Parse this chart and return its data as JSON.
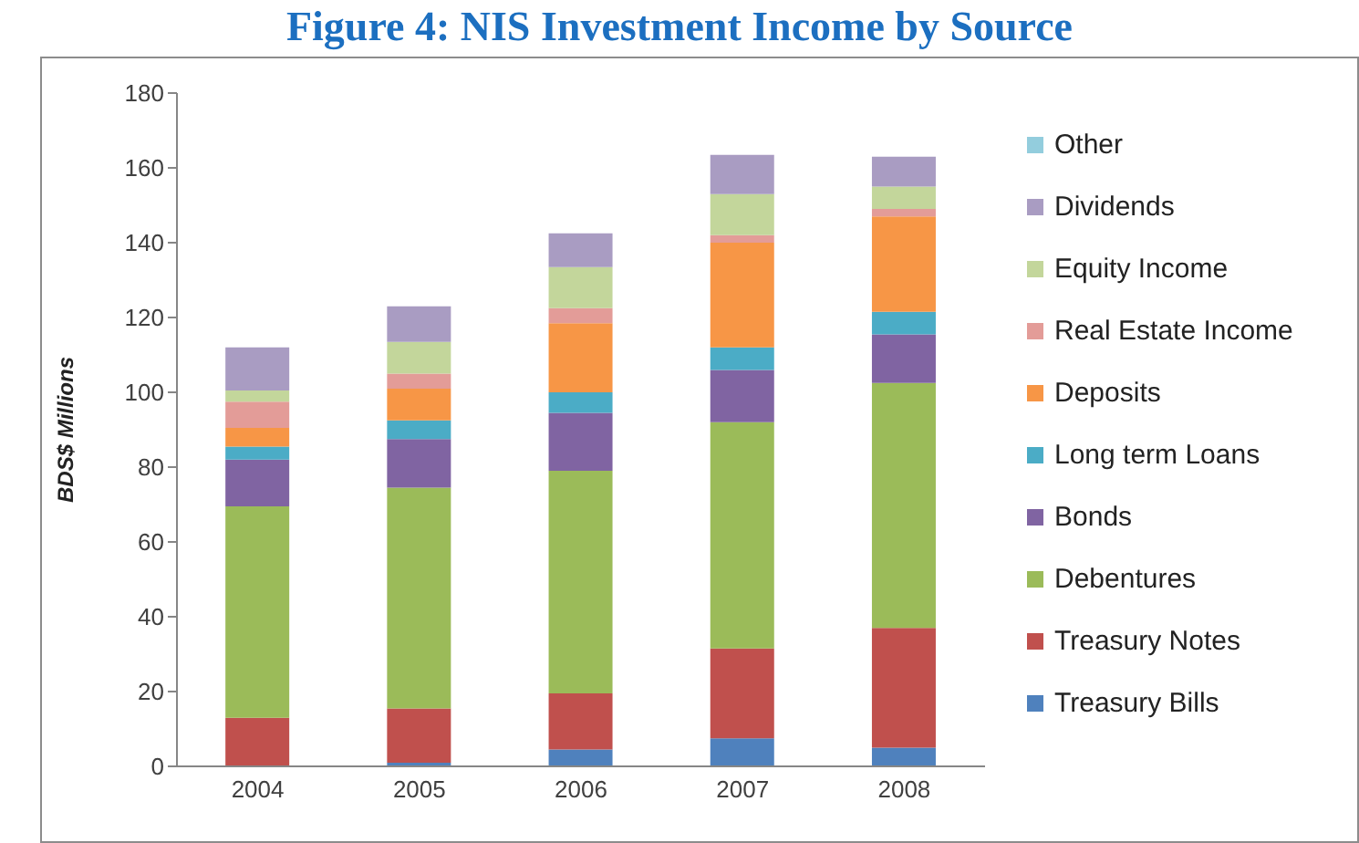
{
  "chart_data": {
    "type": "bar",
    "title": "Figure 4: NIS Investment Income by Source",
    "ylabel": "BDS$ Millions",
    "categories": [
      "2004",
      "2005",
      "2006",
      "2007",
      "2008"
    ],
    "stacked": true,
    "ylim": [
      0,
      180
    ],
    "yticks": [
      0,
      20,
      40,
      60,
      80,
      100,
      120,
      140,
      160,
      180
    ],
    "legend": "right",
    "series": [
      {
        "name": "Treasury Bills",
        "color": "#4f81bd",
        "values": [
          0,
          1,
          4.5,
          7.5,
          5
        ]
      },
      {
        "name": "Treasury Notes",
        "color": "#c0504d",
        "values": [
          13,
          14.5,
          15,
          24,
          32
        ]
      },
      {
        "name": "Debentures",
        "color": "#9bbb59",
        "values": [
          56.5,
          59,
          59.5,
          60.5,
          65.5
        ]
      },
      {
        "name": "Bonds",
        "color": "#8064a2",
        "values": [
          12.5,
          13,
          15.5,
          14,
          13
        ]
      },
      {
        "name": "Long term Loans",
        "color": "#4bacc6",
        "values": [
          3.5,
          5,
          5.5,
          6,
          6
        ]
      },
      {
        "name": "Deposits",
        "color": "#f79646",
        "values": [
          5,
          8.5,
          18.5,
          28,
          25.5
        ]
      },
      {
        "name": "Real Estate Income",
        "color": "#e39c98",
        "values": [
          7,
          4,
          4,
          2,
          2
        ]
      },
      {
        "name": "Equity Income",
        "color": "#c3d69b",
        "values": [
          3,
          8.5,
          11,
          11,
          6
        ]
      },
      {
        "name": "Dividends",
        "color": "#a99cc2",
        "values": [
          11.5,
          9.5,
          9,
          10.5,
          8
        ]
      },
      {
        "name": "Other",
        "color": "#93cddd",
        "values": [
          0,
          0,
          0,
          0,
          0
        ]
      }
    ]
  }
}
